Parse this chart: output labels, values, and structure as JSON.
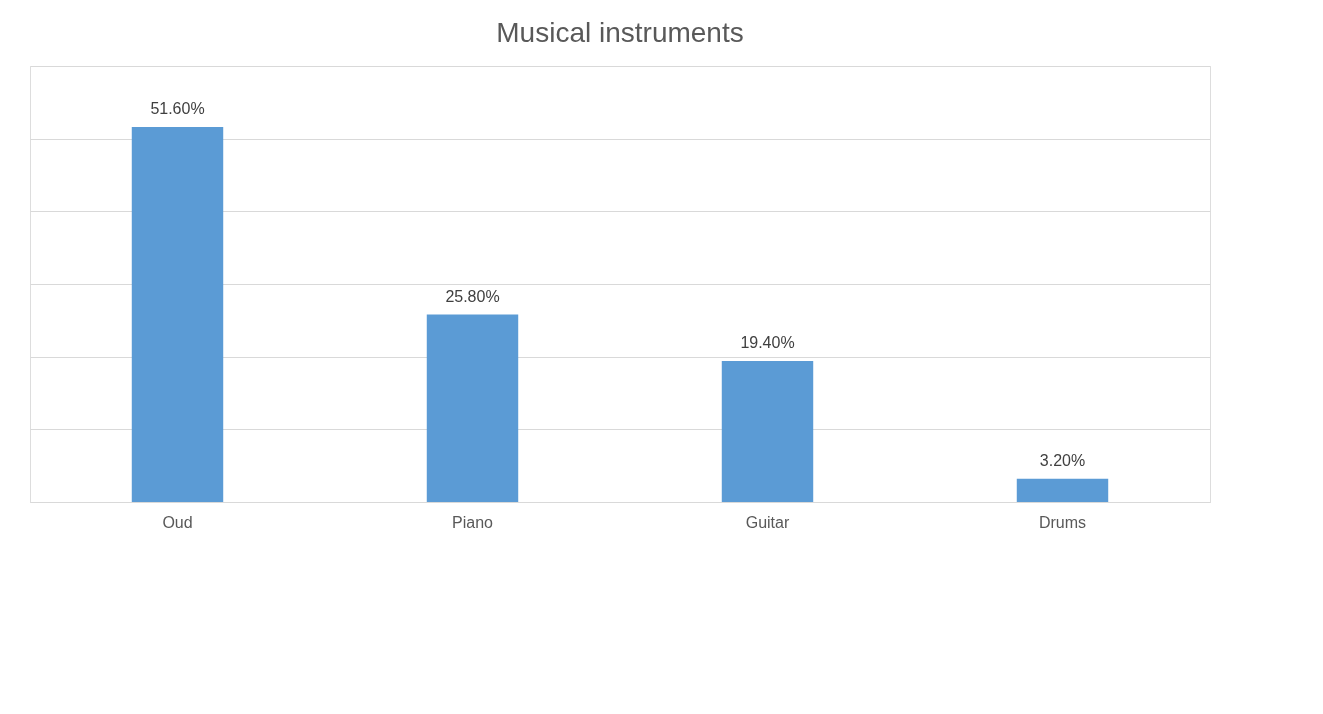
{
  "chart_data": {
    "type": "bar",
    "title": "Musical instruments",
    "categories": [
      "Oud",
      "Piano",
      "Guitar",
      "Drums"
    ],
    "values": [
      51.6,
      25.8,
      19.4,
      3.2
    ],
    "color": "#5b9bd5",
    "value_labels": [
      "51.60%",
      "25.80%",
      "19.40%",
      "3.20%"
    ],
    "ylim": [
      0,
      60
    ],
    "yticks": [
      {
        "value": 0,
        "label": null
      },
      {
        "value": 10,
        "label": null
      },
      {
        "value": 20,
        "label": null
      },
      {
        "value": 30,
        "label": null
      },
      {
        "value": 40,
        "label": null
      },
      {
        "value": 50,
        "label": null
      },
      {
        "value": 60,
        "label": null
      }
    ],
    "grid": "y",
    "tick_labels": "x"
  }
}
